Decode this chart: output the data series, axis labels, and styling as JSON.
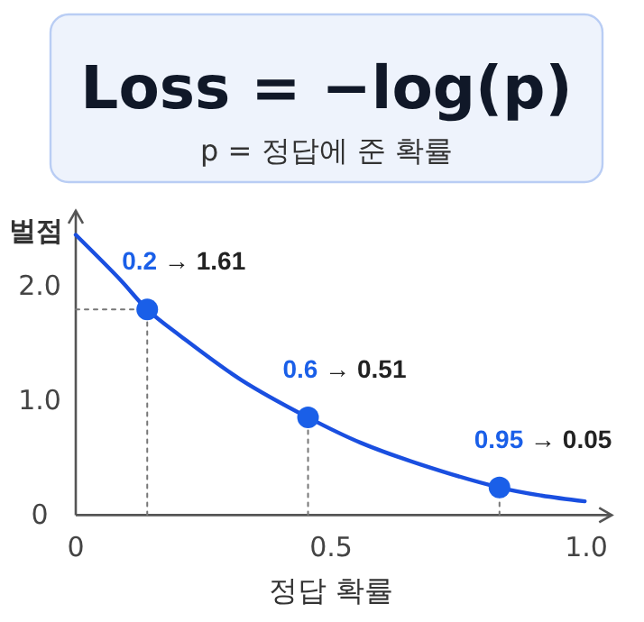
{
  "chart_data": {
    "type": "line",
    "title": "Loss = −log(p)",
    "subtitle": "p = 정답에 준 확률",
    "xlabel": "정답 확률",
    "ylabel": "벌점",
    "xlim": [
      0,
      1.05
    ],
    "ylim": [
      0,
      2.65
    ],
    "xticks": [
      0,
      0.5,
      {
        "value": 1,
        "label": "1.0"
      }
    ],
    "yticks": [
      0,
      {
        "value": 1,
        "label": "1.0"
      },
      {
        "value": 2,
        "label": "2.0"
      }
    ],
    "grid": false,
    "line_style": "solid",
    "series": [
      {
        "color": "#1a4fe0",
        "x": [
          0,
          0.087,
          0.14,
          0.205,
          0.323,
          0.455,
          0.558,
          0.676,
          0.83,
          0.912,
          0.997
        ],
        "values": [
          2.44,
          2.05,
          1.79,
          1.56,
          1.18,
          0.85,
          0.63,
          0.44,
          0.24,
          0.17,
          0.12
        ]
      },
      {
        "color": "#777777",
        "line_style": "dotted",
        "x": [
          0.14,
          0.14
        ],
        "values": [
          0,
          1.79
        ]
      },
      {
        "color": "#777777",
        "line_style": "dotted",
        "x": [
          0,
          0.14
        ],
        "values": [
          1.79,
          1.79
        ]
      },
      {
        "color": "#777777",
        "line_style": "dotted",
        "x": [
          0.455,
          0.455
        ],
        "values": [
          0,
          0.85
        ]
      },
      {
        "color": "#777777",
        "line_style": "dotted",
        "x": [
          0.83,
          0.83
        ],
        "values": [
          0,
          0.24
        ]
      },
      {
        "type": "scatter",
        "color": "#1a5fe8",
        "marker": "circle",
        "x": [
          0.14,
          0.455,
          0.83
        ],
        "values": [
          1.79,
          0.85,
          0.24
        ]
      }
    ],
    "annotations": [
      {
        "text": "0.2 → 1.61",
        "x": 0.14,
        "y": 1.79
      },
      {
        "text": "0.6 → 0.51",
        "x": 0.455,
        "y": 0.85
      },
      {
        "text": "0.95 → 0.05",
        "x": 0.83,
        "y": 0.24
      }
    ]
  }
}
